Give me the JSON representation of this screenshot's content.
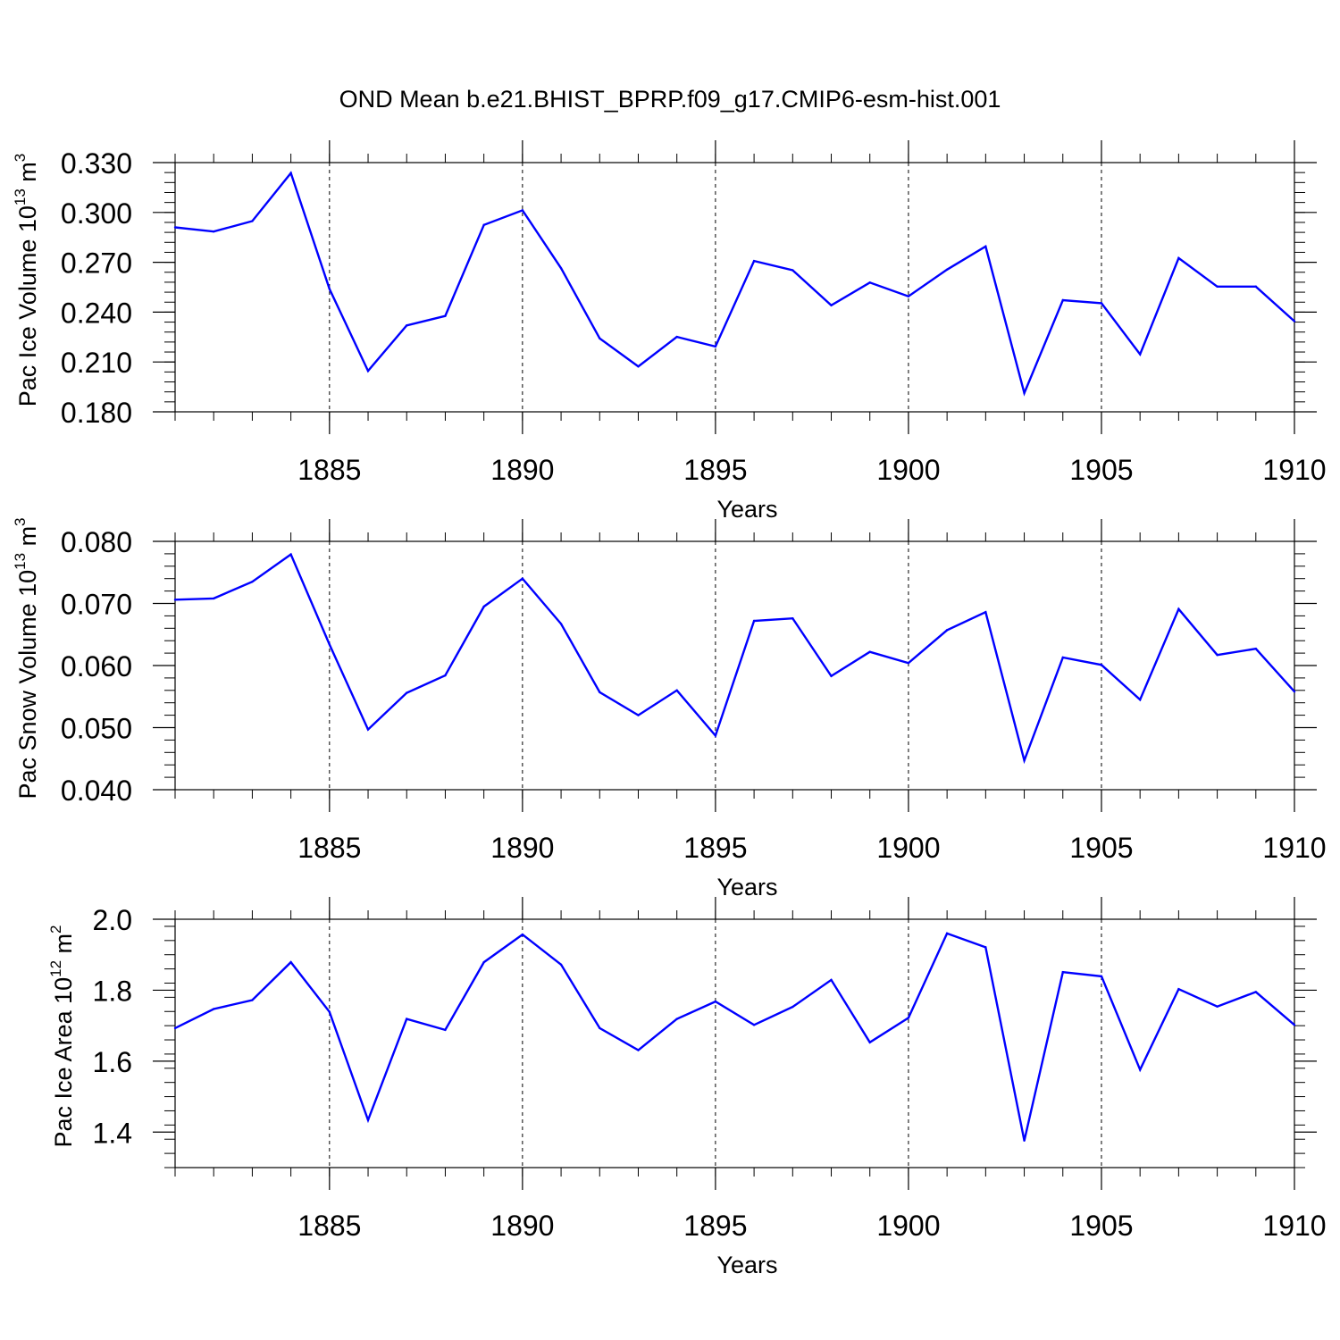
{
  "title": "OND Mean b.e21.BHIST_BPRP.f09_g17.CMIP6-esm-hist.001",
  "colors": {
    "series": "#0000ff",
    "axis": "#000000",
    "grid": "#000000"
  },
  "chart_data": [
    {
      "type": "line",
      "ylabel": {
        "text": "Pac Ice Volume 10",
        "exponent": "13",
        "unit": " m",
        "unit_exponent": "3"
      },
      "xlabel": "Years",
      "xlim": [
        1881,
        1910
      ],
      "ylim": [
        0.18,
        0.33
      ],
      "xticks": [
        1885,
        1890,
        1895,
        1900,
        1905,
        1910
      ],
      "xtick_labels": [
        "1885",
        "1890",
        "1895",
        "1900",
        "1905",
        "1910"
      ],
      "yticks": [
        0.18,
        0.21,
        0.24,
        0.27,
        0.3,
        0.33
      ],
      "ytick_labels": [
        "0.180",
        "0.210",
        "0.240",
        "0.270",
        "0.300",
        "0.330"
      ],
      "grid": "vertical dashed at major x ticks",
      "x": [
        1881,
        1882,
        1883,
        1884,
        1885,
        1886,
        1887,
        1888,
        1889,
        1890,
        1891,
        1892,
        1893,
        1894,
        1895,
        1896,
        1897,
        1898,
        1899,
        1900,
        1901,
        1902,
        1903,
        1904,
        1905,
        1906,
        1907,
        1908,
        1909,
        1910
      ],
      "series": [
        {
          "values": [
            0.291,
            0.2885,
            0.2948,
            0.3237,
            0.254,
            0.2046,
            0.232,
            0.2377,
            0.2925,
            0.3013,
            0.2664,
            0.2242,
            0.2073,
            0.2251,
            0.2193,
            0.2708,
            0.2652,
            0.2441,
            0.2578,
            0.2495,
            0.2656,
            0.2795,
            0.1913,
            0.2472,
            0.2454,
            0.2146,
            0.2725,
            0.2554,
            0.2554,
            0.2345
          ]
        }
      ]
    },
    {
      "type": "line",
      "ylabel": {
        "text": "Pac Snow Volume 10",
        "exponent": "13",
        "unit": " m",
        "unit_exponent": "3"
      },
      "xlabel": "Years",
      "xlim": [
        1881,
        1910
      ],
      "ylim": [
        0.04,
        0.08
      ],
      "xticks": [
        1885,
        1890,
        1895,
        1900,
        1905,
        1910
      ],
      "xtick_labels": [
        "1885",
        "1890",
        "1895",
        "1900",
        "1905",
        "1910"
      ],
      "yticks": [
        0.04,
        0.05,
        0.06,
        0.07,
        0.08
      ],
      "ytick_labels": [
        "0.040",
        "0.050",
        "0.060",
        "0.070",
        "0.080"
      ],
      "grid": "vertical dashed at major x ticks",
      "x": [
        1881,
        1882,
        1883,
        1884,
        1885,
        1886,
        1887,
        1888,
        1889,
        1890,
        1891,
        1892,
        1893,
        1894,
        1895,
        1896,
        1897,
        1898,
        1899,
        1900,
        1901,
        1902,
        1903,
        1904,
        1905,
        1906,
        1907,
        1908,
        1909,
        1910
      ],
      "series": [
        {
          "values": [
            0.0706,
            0.0708,
            0.0735,
            0.0779,
            0.0634,
            0.0497,
            0.0556,
            0.0584,
            0.0695,
            0.074,
            0.0667,
            0.0557,
            0.052,
            0.056,
            0.0487,
            0.0672,
            0.0676,
            0.0583,
            0.0622,
            0.0604,
            0.0657,
            0.0686,
            0.0447,
            0.0613,
            0.0601,
            0.0545,
            0.0691,
            0.0617,
            0.0627,
            0.0558
          ]
        }
      ]
    },
    {
      "type": "line",
      "ylabel": {
        "text": "Pac Ice Area 10",
        "exponent": "12",
        "unit": " m",
        "unit_exponent": "2"
      },
      "xlabel": "Years",
      "xlim": [
        1881,
        1910
      ],
      "ylim": [
        1.3,
        2.0
      ],
      "xticks": [
        1885,
        1890,
        1895,
        1900,
        1905,
        1910
      ],
      "xtick_labels": [
        "1885",
        "1890",
        "1895",
        "1900",
        "1905",
        "1910"
      ],
      "yticks": [
        1.4,
        1.6,
        1.8,
        2.0
      ],
      "ytick_labels": [
        "1.4",
        "1.6",
        "1.8",
        "2.0"
      ],
      "grid": "vertical dashed at major x ticks",
      "x": [
        1881,
        1882,
        1883,
        1884,
        1885,
        1886,
        1887,
        1888,
        1889,
        1890,
        1891,
        1892,
        1893,
        1894,
        1895,
        1896,
        1897,
        1898,
        1899,
        1900,
        1901,
        1902,
        1903,
        1904,
        1905,
        1906,
        1907,
        1908,
        1909,
        1910
      ],
      "series": [
        {
          "values": [
            1.693,
            1.747,
            1.772,
            1.879,
            1.739,
            1.434,
            1.719,
            1.688,
            1.879,
            1.957,
            1.872,
            1.693,
            1.631,
            1.719,
            1.768,
            1.702,
            1.753,
            1.829,
            1.653,
            1.722,
            1.96,
            1.921,
            1.376,
            1.851,
            1.839,
            1.576,
            1.803,
            1.754,
            1.795,
            1.702
          ]
        }
      ]
    }
  ]
}
